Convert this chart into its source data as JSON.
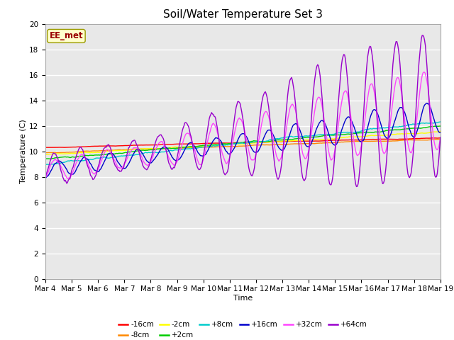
{
  "title": "Soil/Water Temperature Set 3",
  "xlabel": "Time",
  "ylabel": "Temperature (C)",
  "ylim": [
    0,
    20
  ],
  "xlim": [
    0,
    15
  ],
  "xtick_labels": [
    "Mar 4",
    "Mar 5",
    "Mar 6",
    "Mar 7",
    "Mar 8",
    "Mar 9",
    "Mar 10",
    "Mar 11",
    "Mar 12",
    "Mar 13",
    "Mar 14",
    "Mar 15",
    "Mar 16",
    "Mar 17",
    "Mar 18",
    "Mar 19"
  ],
  "annotation_text": "EE_met",
  "annotation_bg": "#ffffcc",
  "annotation_fg": "#990000",
  "annotation_border": "#999900",
  "facecolor": "#e8e8e8",
  "series": [
    {
      "label": "-16cm",
      "color": "#ff0000"
    },
    {
      "label": "-8cm",
      "color": "#ff8800"
    },
    {
      "label": "-2cm",
      "color": "#ffff00"
    },
    {
      "label": "+2cm",
      "color": "#00cc00"
    },
    {
      "label": "+8cm",
      "color": "#00cccc"
    },
    {
      "label": "+16cm",
      "color": "#0000cc"
    },
    {
      "label": "+32cm",
      "color": "#ff44ff"
    },
    {
      "label": "+64cm",
      "color": "#9900cc"
    }
  ],
  "title_fontsize": 11,
  "axis_fontsize": 8,
  "tick_fontsize": 7.5
}
